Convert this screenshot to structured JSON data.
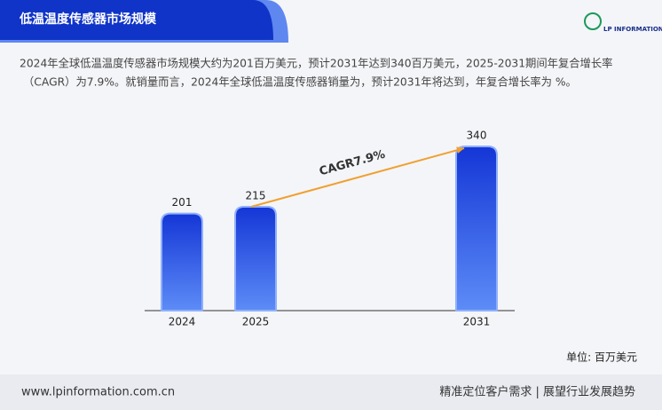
{
  "chart_data": {
    "type": "bar",
    "title": "低温温度传感器市场规模",
    "description": [
      "2024年全球低温温度传感器市场规模大约为201百万美元，预计2031年达到340百万美元，2025-2031期间年复合增长率",
      "（CAGR）为7.9%。就销量而言，2024年全球低温温度传感器销量为，预计2031年将达到，年复合增长率为 %。"
    ],
    "categories": [
      "2024",
      "2025",
      null,
      null,
      "2031"
    ],
    "values": [
      201,
      215,
      null,
      null,
      340
    ],
    "color": "#2149e0",
    "annotation": "CAGR7.9%",
    "unit_label": "单位: 百万美元"
  },
  "logo": "LP INFORMATION",
  "footer": {
    "website": "www.lpinformation.com.cn",
    "slogan": "精准定位客户需求 | 展望行业发展趋势"
  }
}
